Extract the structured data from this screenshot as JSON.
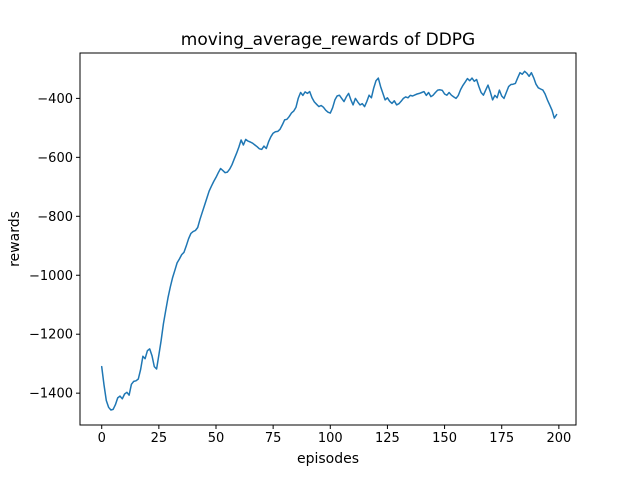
{
  "figure": {
    "title": "moving_average_rewards of DDPG",
    "xlabel": "episodes",
    "ylabel": "rewards",
    "background_color": "#ffffff",
    "frame_color": "#000000",
    "tick_label_color": "#000000"
  },
  "chart_data": {
    "type": "line",
    "title": "moving_average_rewards of DDPG",
    "xlabel": "episodes",
    "ylabel": "rewards",
    "grid": false,
    "legend_position": "none",
    "x_start": 0,
    "x_step": 1,
    "xlim": [
      -9.5,
      207.5
    ],
    "ylim": [
      -1508,
      -246
    ],
    "xticks": [
      0,
      25,
      50,
      75,
      100,
      125,
      150,
      175,
      200
    ],
    "yticks": [
      -400,
      -600,
      -800,
      -1000,
      -1200,
      -1400
    ],
    "series": [
      {
        "name": "moving_average_rewards",
        "color": "#1f77b4",
        "values": [
          -1310,
          -1372,
          -1425,
          -1448,
          -1457,
          -1455,
          -1439,
          -1416,
          -1410,
          -1419,
          -1403,
          -1397,
          -1407,
          -1370,
          -1360,
          -1358,
          -1352,
          -1320,
          -1275,
          -1283,
          -1256,
          -1250,
          -1273,
          -1310,
          -1318,
          -1270,
          -1222,
          -1165,
          -1120,
          -1076,
          -1040,
          -1008,
          -983,
          -958,
          -945,
          -930,
          -922,
          -900,
          -876,
          -858,
          -852,
          -848,
          -838,
          -810,
          -786,
          -762,
          -738,
          -715,
          -698,
          -682,
          -668,
          -652,
          -638,
          -645,
          -652,
          -650,
          -640,
          -625,
          -605,
          -586,
          -565,
          -541,
          -558,
          -539,
          -545,
          -548,
          -552,
          -558,
          -564,
          -571,
          -573,
          -562,
          -570,
          -547,
          -530,
          -518,
          -513,
          -512,
          -505,
          -490,
          -473,
          -471,
          -462,
          -450,
          -443,
          -430,
          -399,
          -380,
          -390,
          -378,
          -383,
          -377,
          -398,
          -412,
          -420,
          -428,
          -424,
          -430,
          -440,
          -447,
          -450,
          -432,
          -405,
          -392,
          -389,
          -400,
          -411,
          -395,
          -383,
          -405,
          -422,
          -400,
          -412,
          -422,
          -418,
          -428,
          -410,
          -389,
          -398,
          -365,
          -340,
          -331,
          -360,
          -383,
          -405,
          -398,
          -410,
          -417,
          -408,
          -422,
          -418,
          -410,
          -400,
          -395,
          -398,
          -390,
          -392,
          -388,
          -385,
          -383,
          -380,
          -377,
          -390,
          -380,
          -394,
          -389,
          -380,
          -372,
          -371,
          -373,
          -385,
          -389,
          -380,
          -389,
          -395,
          -400,
          -390,
          -370,
          -356,
          -345,
          -333,
          -340,
          -331,
          -342,
          -336,
          -360,
          -380,
          -389,
          -372,
          -355,
          -378,
          -405,
          -390,
          -398,
          -372,
          -392,
          -400,
          -380,
          -360,
          -353,
          -352,
          -349,
          -330,
          -313,
          -318,
          -308,
          -315,
          -325,
          -313,
          -330,
          -352,
          -364,
          -368,
          -372,
          -385,
          -405,
          -422,
          -440,
          -467,
          -455
        ]
      }
    ]
  }
}
